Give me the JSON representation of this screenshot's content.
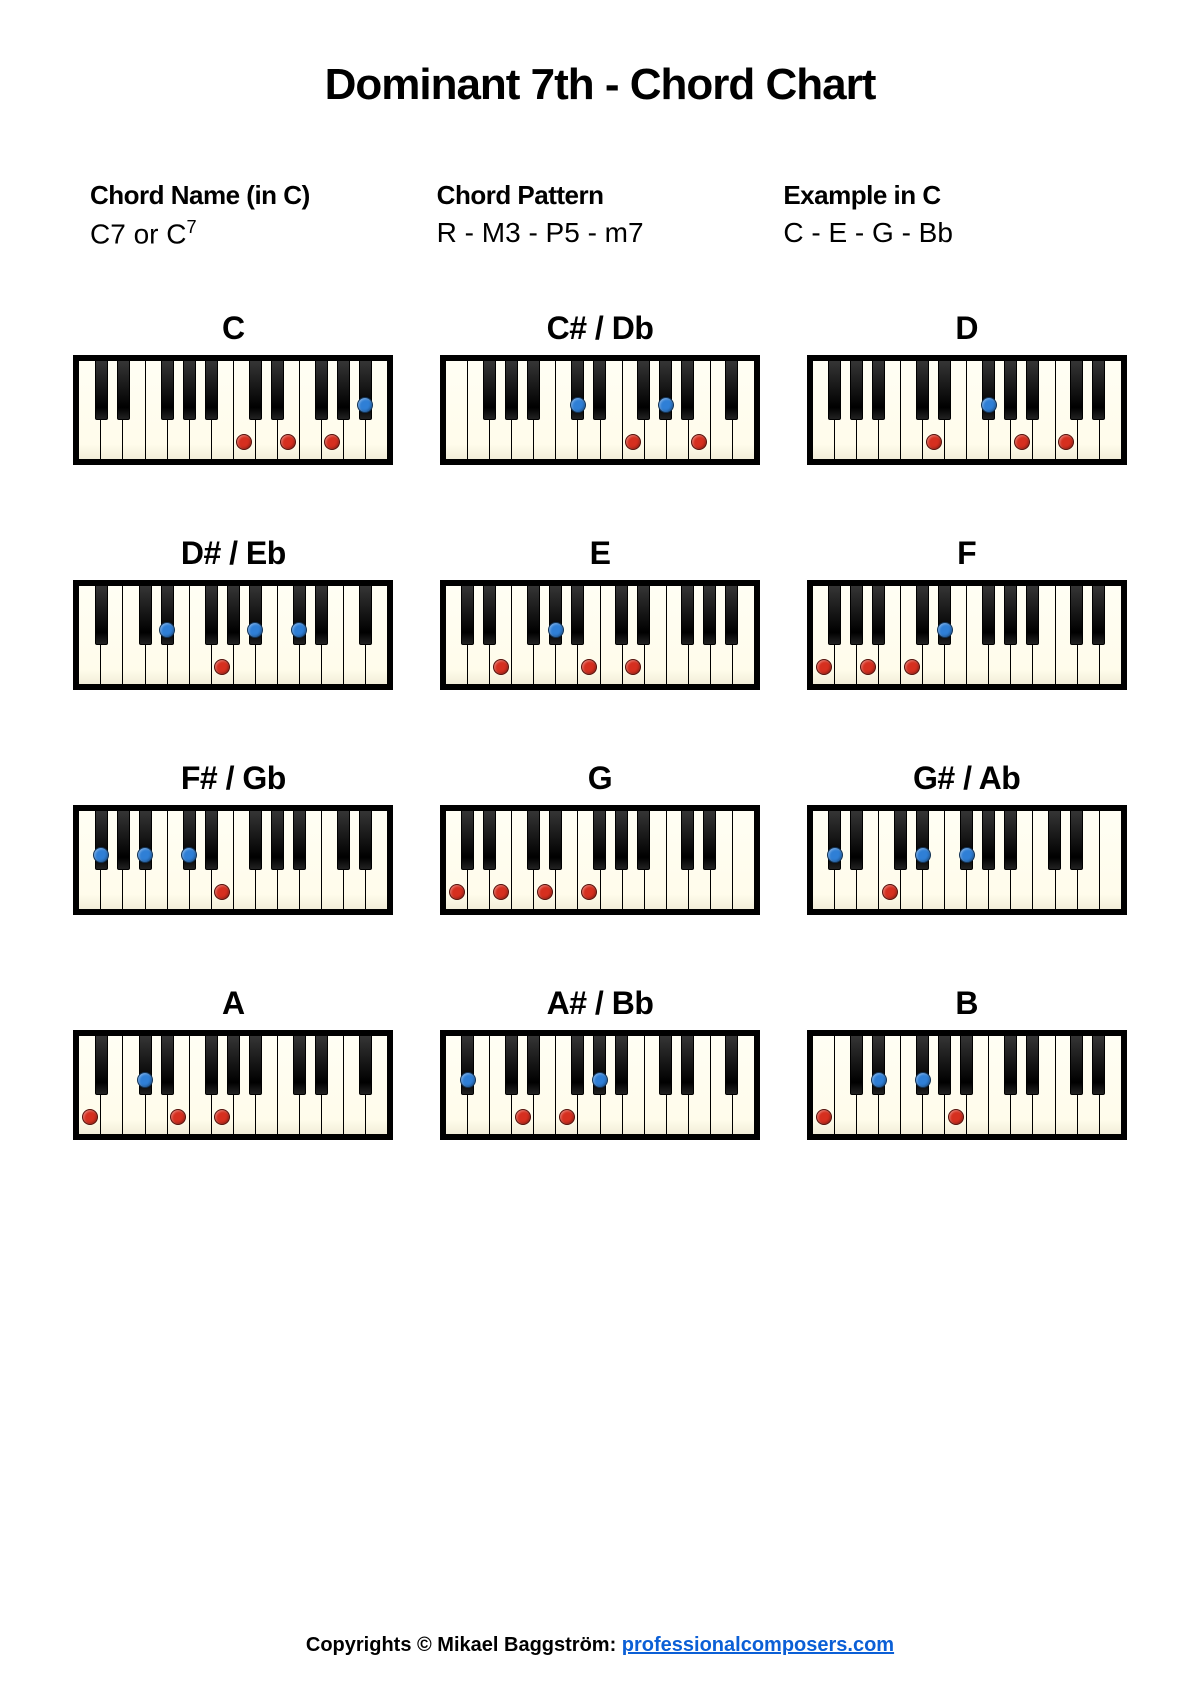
{
  "title": "Dominant 7th - Chord Chart",
  "info": {
    "chordName": {
      "heading": "Chord Name (in C)",
      "value_pre": "C7 or C",
      "value_sup": "7"
    },
    "chordPattern": {
      "heading": "Chord Pattern",
      "value": "R - M3 - P5 - m7"
    },
    "exampleInC": {
      "heading": "Example in C",
      "value": "C - E - G - Bb"
    }
  },
  "keyboard": {
    "whiteKeyCount": 14,
    "innerWidth": 308,
    "innerHeight": 98,
    "blackKeyWidth": 13,
    "whiteDotY": 0.82,
    "blackDotY": 0.45,
    "colors": {
      "whiteKey": "#fffceb",
      "blackKey": "#000000",
      "frameBorder": "#000000",
      "background": "#ffffff",
      "dotRed": "#d62f1f",
      "dotBlue": "#2f7fd6",
      "link": "#0b5fd6"
    },
    "blackKeySlots": [
      0,
      1,
      3,
      4,
      5,
      7,
      8,
      10,
      11,
      12
    ]
  },
  "chords": [
    {
      "label": "C",
      "startNote": 7,
      "notes": [
        0,
        4,
        7,
        10
      ]
    },
    {
      "label": "C# / Db",
      "startNote": 6,
      "notes": [
        1,
        5,
        8,
        11
      ]
    },
    {
      "label": "D",
      "startNote": 5,
      "notes": [
        2,
        6,
        9,
        12
      ]
    },
    {
      "label": "D# / Eb",
      "startNote": 4,
      "notes": [
        3,
        7,
        10,
        13
      ]
    },
    {
      "label": "E",
      "startNote": 2,
      "notes": [
        4,
        8,
        11,
        14
      ]
    },
    {
      "label": "F",
      "startNote": 0,
      "notes": [
        5,
        9,
        12,
        15
      ]
    },
    {
      "label": "F# / Gb",
      "startNote": 0,
      "notes": [
        6,
        10,
        13,
        16
      ]
    },
    {
      "label": "G",
      "startNote": 0,
      "notes": [
        7,
        11,
        14,
        17
      ]
    },
    {
      "label": "G# / Ab",
      "startNote": 0,
      "notes": [
        8,
        12,
        15,
        18
      ]
    },
    {
      "label": "A",
      "startNote": 0,
      "notes": [
        9,
        13,
        16,
        19
      ]
    },
    {
      "label": "A# / Bb",
      "startNote": 0,
      "notes": [
        10,
        14,
        17,
        20
      ]
    },
    {
      "label": "B",
      "startNote": 0,
      "notes": [
        11,
        15,
        18,
        21
      ]
    }
  ],
  "footer": {
    "prefix": "Copyrights © Mikael Baggström: ",
    "linkText": "professionalcomposers.com",
    "linkHref": "#"
  }
}
